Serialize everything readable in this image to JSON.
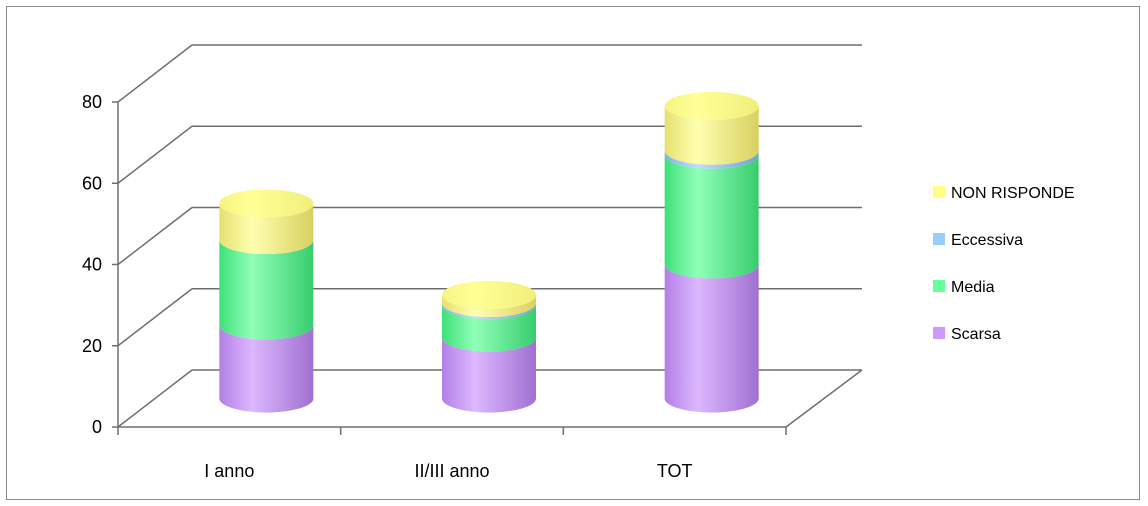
{
  "chart_data": {
    "type": "bar",
    "stacked": true,
    "style": "3d-cylinder",
    "categories": [
      "I anno",
      "II/III anno",
      "TOT"
    ],
    "series": [
      {
        "name": "Scarsa",
        "color": "#cc99ff",
        "values": [
          18,
          15,
          33
        ]
      },
      {
        "name": "Media",
        "color": "#66ff99",
        "values": [
          21,
          8,
          27
        ]
      },
      {
        "name": "Eccessiva",
        "color": "#99ccff",
        "values": [
          0,
          0.5,
          1
        ]
      },
      {
        "name": "NON RISPONDE",
        "color": "#ffff88",
        "values": [
          9,
          2,
          11
        ]
      }
    ],
    "ylim": [
      0,
      80
    ],
    "yticks": [
      0,
      20,
      40,
      60,
      80
    ],
    "grid": true,
    "legend_position": "right"
  }
}
